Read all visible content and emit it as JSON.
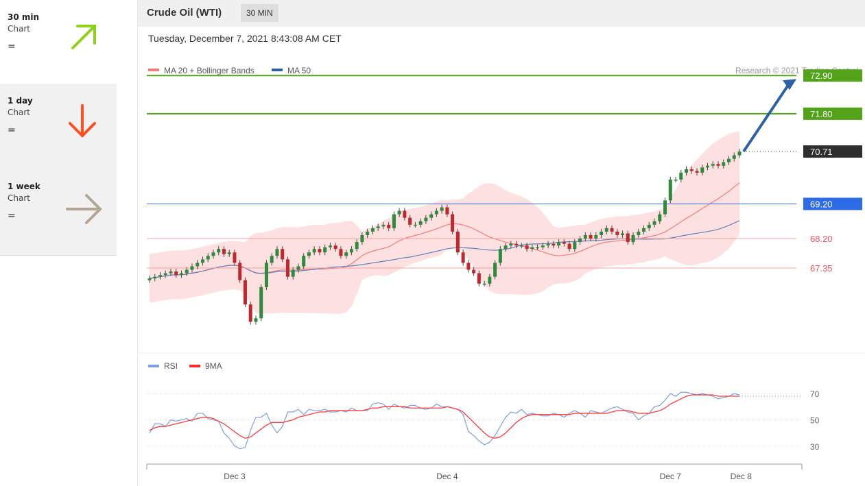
{
  "sidebar": {
    "items": [
      {
        "label": "30 min",
        "sub": "Chart",
        "status": "=",
        "direction": "up",
        "color": "#8fd11a"
      },
      {
        "label": "1 day",
        "sub": "Chart",
        "status": "=",
        "direction": "down",
        "color": "#ff4e1f"
      },
      {
        "label": "1 week",
        "sub": "Chart",
        "status": "=",
        "direction": "right",
        "color": "#b4a696"
      }
    ]
  },
  "header": {
    "title": "Crude Oil (WTI)",
    "timeframe": "30 MIN"
  },
  "date_text": "Tuesday, December 7, 2021 8:43:08 AM CET",
  "copyright": "Research © 2021 Trading Central",
  "chart_data": [
    {
      "type": "candlestick",
      "legend": [
        {
          "name": "MA 20 + Bollinger Bands",
          "color": "#f77b7b"
        },
        {
          "name": "MA 50",
          "color": "#2f5fa8"
        }
      ],
      "price_range": [
        64.9,
        73.3
      ],
      "levels": [
        {
          "label": "72.90",
          "value": 72.9,
          "color": "#53a31a",
          "kind": "target"
        },
        {
          "label": "71.80",
          "value": 71.8,
          "color": "#53a31a",
          "kind": "target"
        },
        {
          "label": "70.71",
          "value": 70.71,
          "color": "#2e2e2e",
          "kind": "last"
        },
        {
          "label": "69.20",
          "value": 69.2,
          "color": "#2e6be6",
          "kind": "pivot"
        },
        {
          "label": "68.20",
          "value": 68.2,
          "color": "#f0545a",
          "kind": "support"
        },
        {
          "label": "67.35",
          "value": 67.35,
          "color": "#f0545a",
          "kind": "support"
        }
      ],
      "forecast_arrow": {
        "from": 70.71,
        "to": 72.9,
        "color": "#2f5fa8"
      },
      "x_ticks": [
        "Dec 3",
        "Dec 4",
        "Dec 7",
        "Dec 8"
      ],
      "close": [
        67.05,
        67.1,
        67.15,
        67.2,
        67.25,
        67.15,
        67.2,
        67.3,
        67.4,
        67.5,
        67.6,
        67.7,
        67.8,
        67.9,
        67.75,
        67.8,
        67.5,
        67.0,
        66.3,
        65.8,
        65.9,
        66.8,
        67.5,
        67.7,
        67.9,
        67.6,
        67.1,
        67.3,
        67.4,
        67.7,
        67.8,
        67.9,
        67.8,
        67.95,
        68.0,
        67.9,
        67.7,
        67.8,
        67.9,
        68.1,
        68.3,
        68.4,
        68.5,
        68.55,
        68.6,
        68.5,
        68.9,
        69.0,
        68.8,
        68.6,
        68.6,
        68.7,
        68.8,
        68.9,
        69.0,
        69.1,
        68.9,
        68.4,
        67.8,
        67.5,
        67.3,
        67.2,
        66.9,
        66.9,
        67.1,
        67.5,
        67.9,
        68.0,
        68.05,
        68.0,
        68.0,
        67.9,
        67.95,
        67.95,
        68.0,
        68.05,
        68.0,
        68.1,
        68.05,
        67.9,
        68.1,
        68.2,
        68.3,
        68.2,
        68.3,
        68.4,
        68.5,
        68.4,
        68.3,
        68.35,
        68.1,
        68.3,
        68.4,
        68.5,
        68.6,
        68.7,
        68.9,
        69.3,
        69.9,
        69.9,
        70.1,
        70.2,
        70.15,
        70.1,
        70.25,
        70.3,
        70.35,
        70.3,
        70.4,
        70.5,
        70.6,
        70.71
      ],
      "open": [
        67.0,
        67.05,
        67.1,
        67.15,
        67.2,
        67.25,
        67.15,
        67.2,
        67.3,
        67.4,
        67.5,
        67.6,
        67.7,
        67.8,
        67.9,
        67.75,
        67.8,
        67.5,
        67.0,
        66.3,
        65.8,
        65.9,
        66.8,
        67.5,
        67.7,
        67.9,
        67.6,
        67.1,
        67.3,
        67.4,
        67.7,
        67.8,
        67.9,
        67.8,
        67.95,
        68.0,
        67.9,
        67.7,
        67.8,
        67.9,
        68.1,
        68.3,
        68.4,
        68.5,
        68.55,
        68.6,
        68.5,
        68.9,
        69.0,
        68.8,
        68.6,
        68.6,
        68.7,
        68.8,
        68.9,
        69.0,
        69.1,
        68.9,
        68.4,
        67.8,
        67.5,
        67.3,
        67.2,
        66.9,
        66.9,
        67.1,
        67.5,
        67.9,
        68.0,
        68.05,
        68.0,
        68.0,
        67.9,
        67.95,
        67.95,
        68.0,
        68.05,
        68.0,
        68.1,
        68.05,
        67.9,
        68.1,
        68.2,
        68.3,
        68.2,
        68.3,
        68.4,
        68.5,
        68.4,
        68.3,
        68.35,
        68.1,
        68.3,
        68.4,
        68.5,
        68.6,
        68.7,
        68.9,
        69.3,
        69.9,
        69.9,
        70.1,
        70.2,
        70.15,
        70.1,
        70.25,
        70.3,
        70.35,
        70.3,
        70.4,
        70.5,
        70.6
      ],
      "rsi": [
        40,
        47,
        47,
        45,
        50,
        49,
        50,
        51,
        49,
        55,
        55,
        51,
        50,
        49,
        40,
        36,
        30,
        28,
        29,
        42,
        52,
        52,
        55,
        46,
        40,
        45,
        56,
        56,
        58,
        54,
        58,
        57,
        57,
        58,
        56,
        56,
        57,
        56,
        59,
        57,
        57,
        57,
        62,
        63,
        62,
        58,
        62,
        60,
        59,
        61,
        61,
        59,
        58,
        59,
        62,
        60,
        60,
        59,
        58,
        54,
        41,
        38,
        34,
        31,
        33,
        38,
        45,
        52,
        56,
        55,
        58,
        54,
        55,
        54,
        53,
        53,
        55,
        54,
        52,
        55,
        57,
        55,
        52,
        57,
        56,
        55,
        57,
        59,
        60,
        58,
        56,
        55,
        50,
        53,
        55,
        60,
        61,
        65,
        70,
        68,
        71,
        71,
        70,
        69,
        70,
        69,
        68,
        66,
        67,
        68,
        70,
        69
      ],
      "rsi_ma": [
        42,
        44,
        45,
        45,
        46,
        47,
        48,
        49,
        50,
        51,
        52,
        52,
        51,
        49,
        47,
        44,
        41,
        38,
        36,
        37,
        40,
        43,
        46,
        48,
        48,
        48,
        49,
        50,
        52,
        53,
        54,
        55,
        56,
        56,
        57,
        57,
        57,
        57,
        57,
        57,
        57,
        58,
        59,
        59,
        60,
        60,
        60,
        60,
        60,
        59,
        59,
        59,
        59,
        59,
        59,
        59,
        60,
        59,
        58,
        56,
        52,
        48,
        44,
        40,
        37,
        36,
        37,
        40,
        44,
        48,
        51,
        53,
        54,
        54,
        54,
        54,
        54,
        54,
        54,
        54,
        55,
        55,
        55,
        55,
        55,
        55,
        55,
        56,
        57,
        57,
        57,
        56,
        55,
        55,
        55,
        56,
        57,
        59,
        62,
        64,
        66,
        68,
        69,
        69,
        69,
        69,
        69,
        68,
        68,
        68,
        68,
        68
      ],
      "rsi_levels": [
        70,
        50,
        30
      ],
      "rsi_legend": [
        {
          "name": "RSI",
          "color": "#7b9ee0"
        },
        {
          "name": "9MA",
          "color": "#ff2a2a"
        }
      ]
    }
  ]
}
